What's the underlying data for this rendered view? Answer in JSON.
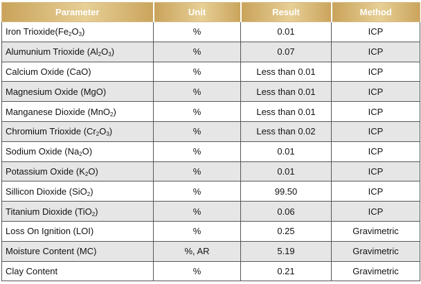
{
  "table": {
    "headers": {
      "parameter": "Parameter",
      "unit": "Unit",
      "result": "Result",
      "method": "Method"
    },
    "rows": [
      {
        "name": "Iron Trioxide",
        "formula": [
          "(Fe",
          "2",
          "O",
          "3",
          ")"
        ],
        "unit": "%",
        "result": "0.01",
        "method": "ICP"
      },
      {
        "name": "Alumunium Trioxide ",
        "formula": [
          "(Al",
          "2",
          "O",
          "3",
          ")"
        ],
        "unit": "%",
        "result": "0.07",
        "method": "ICP"
      },
      {
        "name": "Calcium Oxide (CaO)",
        "unit": "%",
        "result": "Less than 0.01",
        "method": "ICP"
      },
      {
        "name": "Magnesium Oxide (MgO)",
        "unit": "%",
        "result": "Less than 0.01",
        "method": "ICP"
      },
      {
        "name": "Manganese Dioxide ",
        "formula": [
          "(MnO",
          "2",
          ")"
        ],
        "unit": "%",
        "result": "Less than 0.01",
        "method": "ICP"
      },
      {
        "name": "Chromium Trioxide ",
        "formula": [
          "(Cr",
          "2",
          "O",
          "3",
          ")"
        ],
        "unit": "%",
        "result": "Less than 0.02",
        "method": "ICP"
      },
      {
        "name": "Sodium Oxide ",
        "formula": [
          "(Na",
          "2",
          "O)"
        ],
        "unit": "%",
        "result": "0.01",
        "method": "ICP"
      },
      {
        "name": "Potassium Oxide ",
        "formula": [
          "(K",
          "2",
          "O)"
        ],
        "unit": "%",
        "result": "0.01",
        "method": "ICP"
      },
      {
        "name": "Sillicon Dioxide ",
        "formula": [
          "(SiO",
          "2",
          ")"
        ],
        "unit": "%",
        "result": "99.50",
        "method": "ICP"
      },
      {
        "name": "Titanium Dioxide ",
        "formula": [
          "(TiO",
          "2",
          ")"
        ],
        "unit": "%",
        "result": "0.06",
        "method": "ICP"
      },
      {
        "name": "Loss On Ignition (LOI)",
        "unit": "%",
        "result": "0.25",
        "method": "Gravimetric"
      },
      {
        "name": "Moisture Content (MC)",
        "unit": "%, AR",
        "result": "5.19",
        "method": "Gravimetric"
      },
      {
        "name": "Clay Content",
        "unit": "%",
        "result": "0.21",
        "method": "Gravimetric"
      }
    ]
  },
  "colors": {
    "header_gold": "#c9a35a",
    "header_gold_light": "#e7cf96",
    "row_shade": "#e6e6e6",
    "border": "#555555"
  }
}
